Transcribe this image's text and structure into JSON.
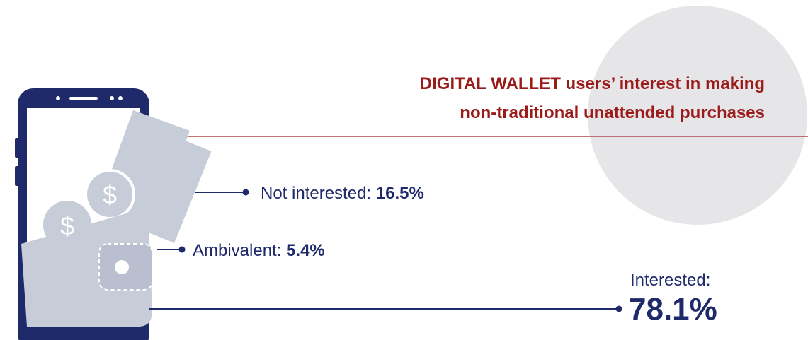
{
  "header": {
    "title_lines": [
      "DIGITAL WALLET users’ interest in making",
      "non-traditional unattended purchases"
    ]
  },
  "items": [
    {
      "label": "Not interested:",
      "value": "16.5%"
    },
    {
      "label": "Ambivalent:",
      "value": "5.4%"
    },
    {
      "label": "Interested:",
      "value": "78.1%"
    }
  ]
}
